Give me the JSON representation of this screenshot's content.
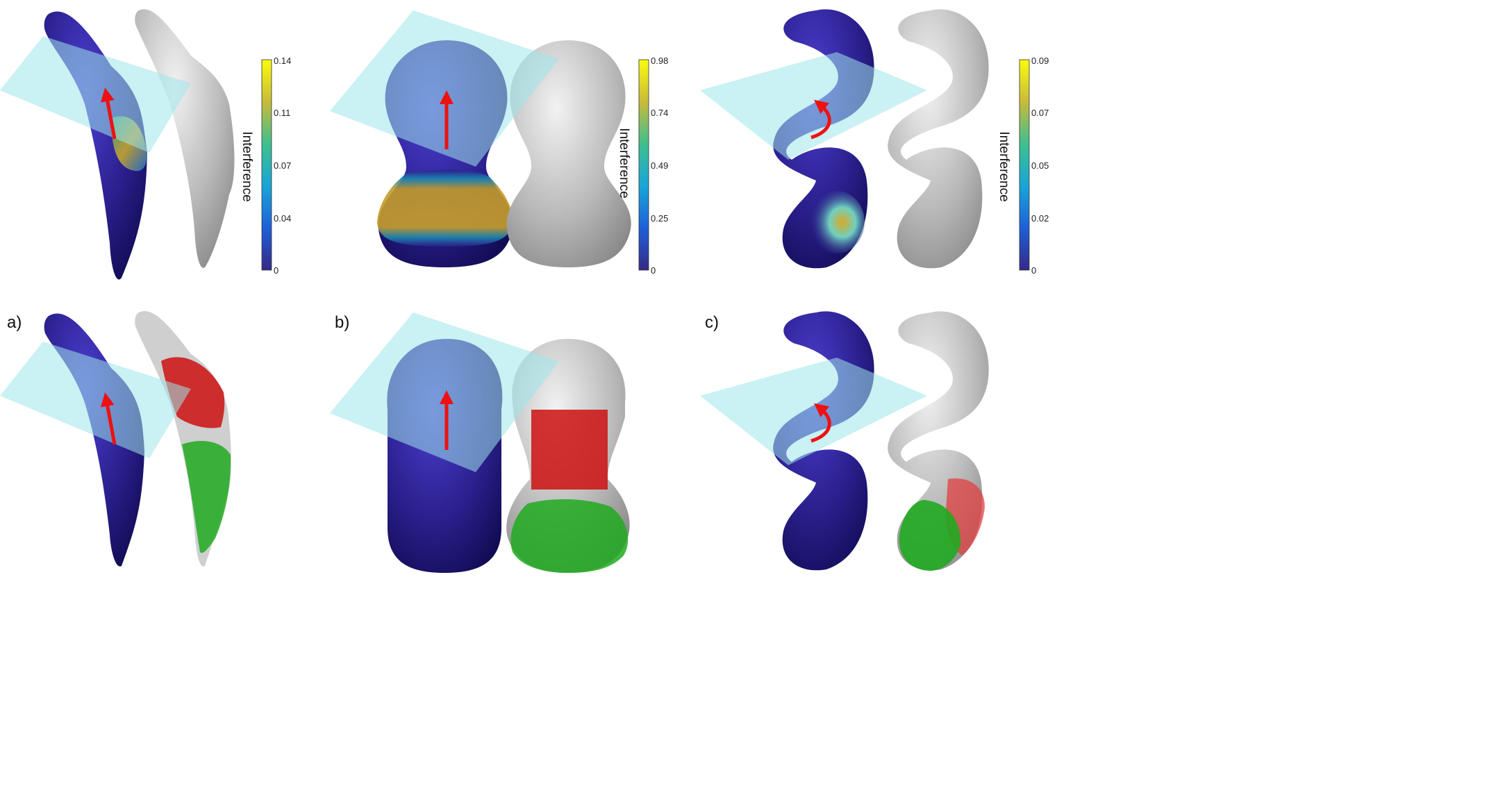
{
  "panels": [
    {
      "id": "a",
      "label": "a)",
      "colorbar": {
        "title": "Interference",
        "ticks": [
          "0.14",
          "0.11",
          "0.07",
          "0.04",
          "0"
        ]
      }
    },
    {
      "id": "b",
      "label": "b)",
      "colorbar": {
        "title": "Interference",
        "ticks": [
          "0.98",
          "0.74",
          "0.49",
          "0.25",
          "0"
        ]
      }
    },
    {
      "id": "c",
      "label": "c)",
      "colorbar": {
        "title": "Interference",
        "ticks": [
          "0.09",
          "0.07",
          "0.05",
          "0.02",
          "0"
        ]
      }
    }
  ],
  "colors": {
    "shape_blue": "#2a1f8c",
    "shape_gray": "#b8b8b8",
    "plane": "#9fe6ea",
    "arrow": "#ee1111",
    "interference_yellow": "#d9b020",
    "segment_red": "#cc1010",
    "segment_green": "#20aa20",
    "colormap": [
      "#f9fb0e",
      "#e0b83a",
      "#24bca8",
      "#1786e0",
      "#3f2dae",
      "#352a87"
    ]
  }
}
